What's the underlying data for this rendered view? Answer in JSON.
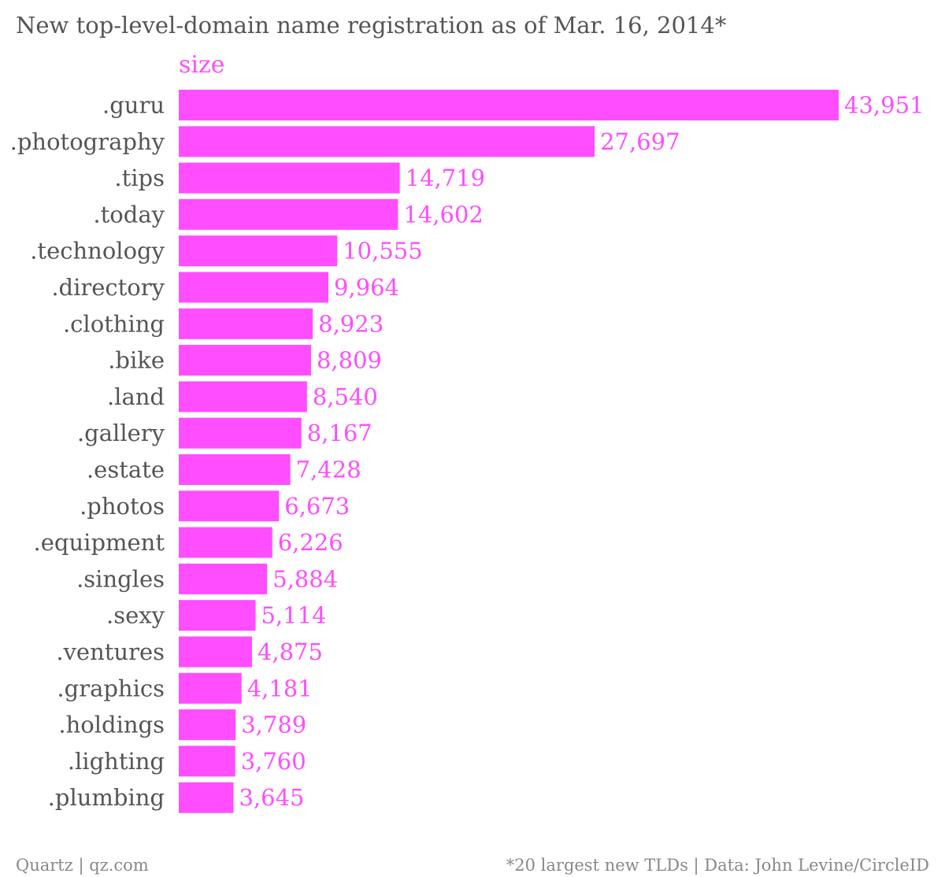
{
  "colors": {
    "bar": "#ff4dff",
    "value_label": "#ff4dff",
    "text": "#555555",
    "footer": "#888888",
    "background": "#ffffff"
  },
  "footer": {
    "left": "Quartz | qz.com",
    "right": "*20 largest new TLDs | Data: John Levine/CircleID"
  },
  "chart_data": {
    "type": "bar",
    "orientation": "horizontal",
    "title": "New top-level-domain name registration as of Mar. 16, 2014*",
    "series_name": "size",
    "categories": [
      ".guru",
      ".photography",
      ".tips",
      ".today",
      ".technology",
      ".directory",
      ".clothing",
      ".bike",
      ".land",
      ".gallery",
      ".estate",
      ".photos",
      ".equipment",
      ".singles",
      ".sexy",
      ".ventures",
      ".graphics",
      ".holdings",
      ".lighting",
      ".plumbing"
    ],
    "values": [
      43951,
      27697,
      14719,
      14602,
      10555,
      9964,
      8923,
      8809,
      8540,
      8167,
      7428,
      6673,
      6226,
      5884,
      5114,
      4875,
      4181,
      3789,
      3760,
      3645
    ],
    "value_labels": [
      "43,951",
      "27,697",
      "14,719",
      "14,602",
      "10,555",
      "9,964",
      "8,923",
      "8,809",
      "8,540",
      "8,167",
      "7,428",
      "6,673",
      "6,226",
      "5,884",
      "5,114",
      "4,875",
      "4,181",
      "3,789",
      "3,760",
      "3,645"
    ],
    "xlim": [
      0,
      43951
    ],
    "grid": false,
    "axes_visible": false
  }
}
